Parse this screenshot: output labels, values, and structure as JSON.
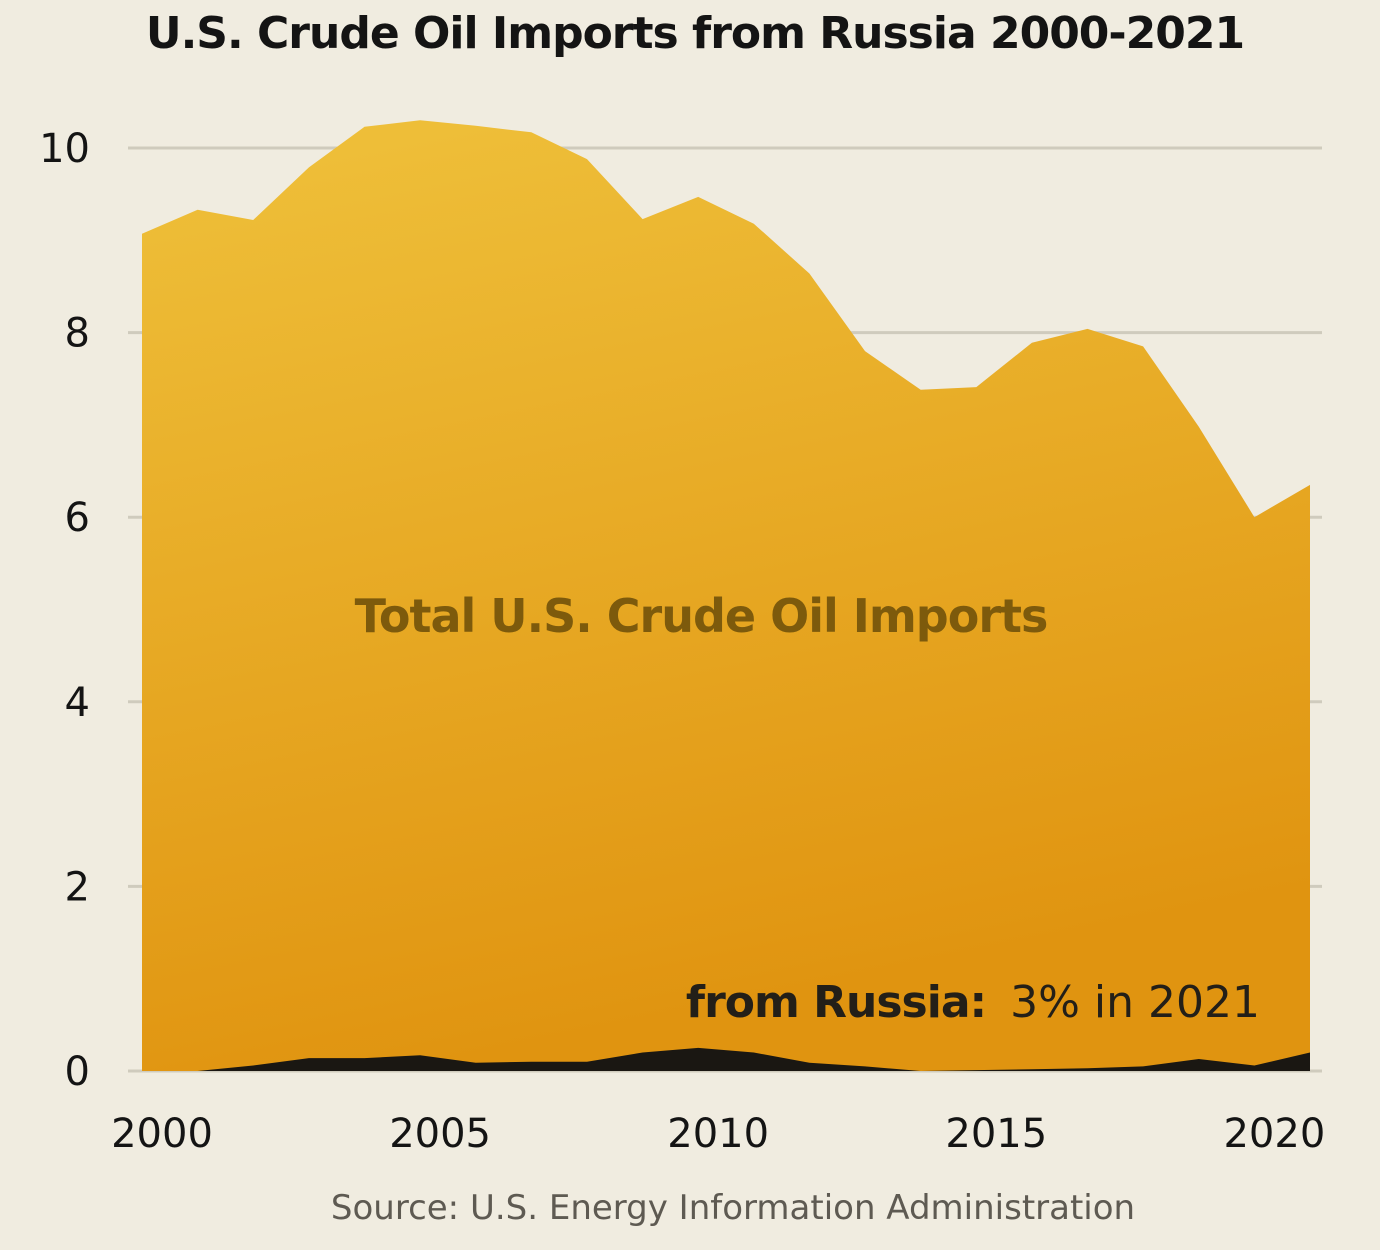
{
  "title": "U.S. Crude Oil Imports from Russia 2000-2021",
  "source": "Source: U.S. Energy Information Administration",
  "colors": {
    "background": "#f0ece0",
    "total_area_top": "#efc13b",
    "total_area_bottom": "#e09410",
    "russia_area": "#1a1712",
    "total_label": "#7d5a0c",
    "grid": "#cfcbbd"
  },
  "chart_data": {
    "type": "area",
    "x": [
      2000,
      2001,
      2002,
      2003,
      2004,
      2005,
      2006,
      2007,
      2008,
      2009,
      2010,
      2011,
      2012,
      2013,
      2014,
      2015,
      2016,
      2017,
      2018,
      2019,
      2020,
      2021
    ],
    "series": [
      {
        "name": "Total U.S. Crude Oil Imports",
        "values": [
          9.07,
          9.33,
          9.22,
          9.79,
          10.23,
          10.3,
          10.24,
          10.17,
          9.88,
          9.23,
          9.47,
          9.18,
          8.64,
          7.8,
          7.38,
          7.41,
          7.89,
          8.04,
          7.85,
          6.98,
          6.0,
          6.35
        ]
      },
      {
        "name": "from Russia",
        "values": [
          0.0,
          0.0,
          0.06,
          0.14,
          0.14,
          0.17,
          0.09,
          0.1,
          0.1,
          0.2,
          0.25,
          0.2,
          0.09,
          0.05,
          0.0,
          0.01,
          0.02,
          0.03,
          0.05,
          0.13,
          0.06,
          0.2
        ]
      }
    ],
    "annotations": {
      "total_label": "Total U.S. Crude Oil Imports",
      "russia_label_bold": "from Russia:",
      "russia_label_rest": "3% in 2021"
    },
    "xticks": [
      "2000",
      "2005",
      "2010",
      "2015",
      "2020"
    ],
    "yticks": [
      "0",
      "2",
      "4",
      "6",
      "8",
      "10"
    ],
    "xlim": [
      2000,
      2021
    ],
    "ylim": [
      0,
      10
    ],
    "grid": true,
    "legend": "none"
  }
}
